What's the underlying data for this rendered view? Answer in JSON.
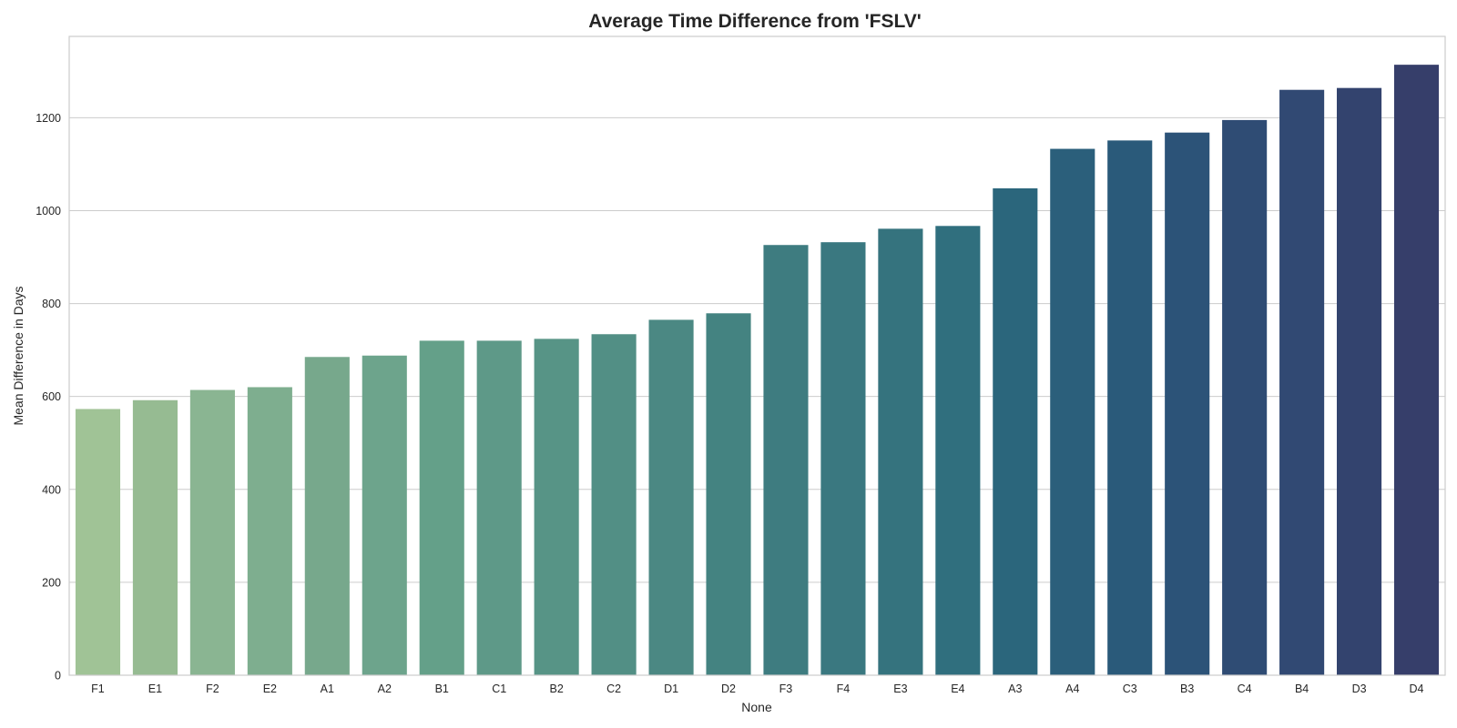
{
  "chart_data": {
    "type": "bar",
    "title": "Average Time Difference from 'FSLV'",
    "xlabel": "None",
    "ylabel": "Mean Difference in Days",
    "ylim": [
      0,
      1375
    ],
    "yticks": [
      0,
      200,
      400,
      600,
      800,
      1000,
      1200
    ],
    "grid": "y-axis only",
    "legend": "none",
    "categories": [
      "F1",
      "E1",
      "F2",
      "E2",
      "A1",
      "A2",
      "B1",
      "C1",
      "B2",
      "C2",
      "D1",
      "D2",
      "F3",
      "F4",
      "E3",
      "E4",
      "A3",
      "A4",
      "C3",
      "B3",
      "C4",
      "B4",
      "D3",
      "D4"
    ],
    "values": [
      573,
      592,
      614,
      620,
      685,
      688,
      720,
      720,
      724,
      734,
      765,
      779,
      926,
      932,
      961,
      967,
      1048,
      1133,
      1151,
      1168,
      1195,
      1260,
      1264,
      1314
    ],
    "colors": [
      "#a0c396",
      "#96bb92",
      "#8ab592",
      "#7eae8f",
      "#77a88c",
      "#6da48c",
      "#64a089",
      "#5e9988",
      "#579486",
      "#528f85",
      "#4b8883",
      "#448381",
      "#3e7c80",
      "#3a7880",
      "#35737e",
      "#306f7e",
      "#2b667c",
      "#2b5f7b",
      "#2a5a7a",
      "#2c5378",
      "#2f4c74",
      "#314973",
      "#33436e",
      "#363e6a"
    ]
  }
}
